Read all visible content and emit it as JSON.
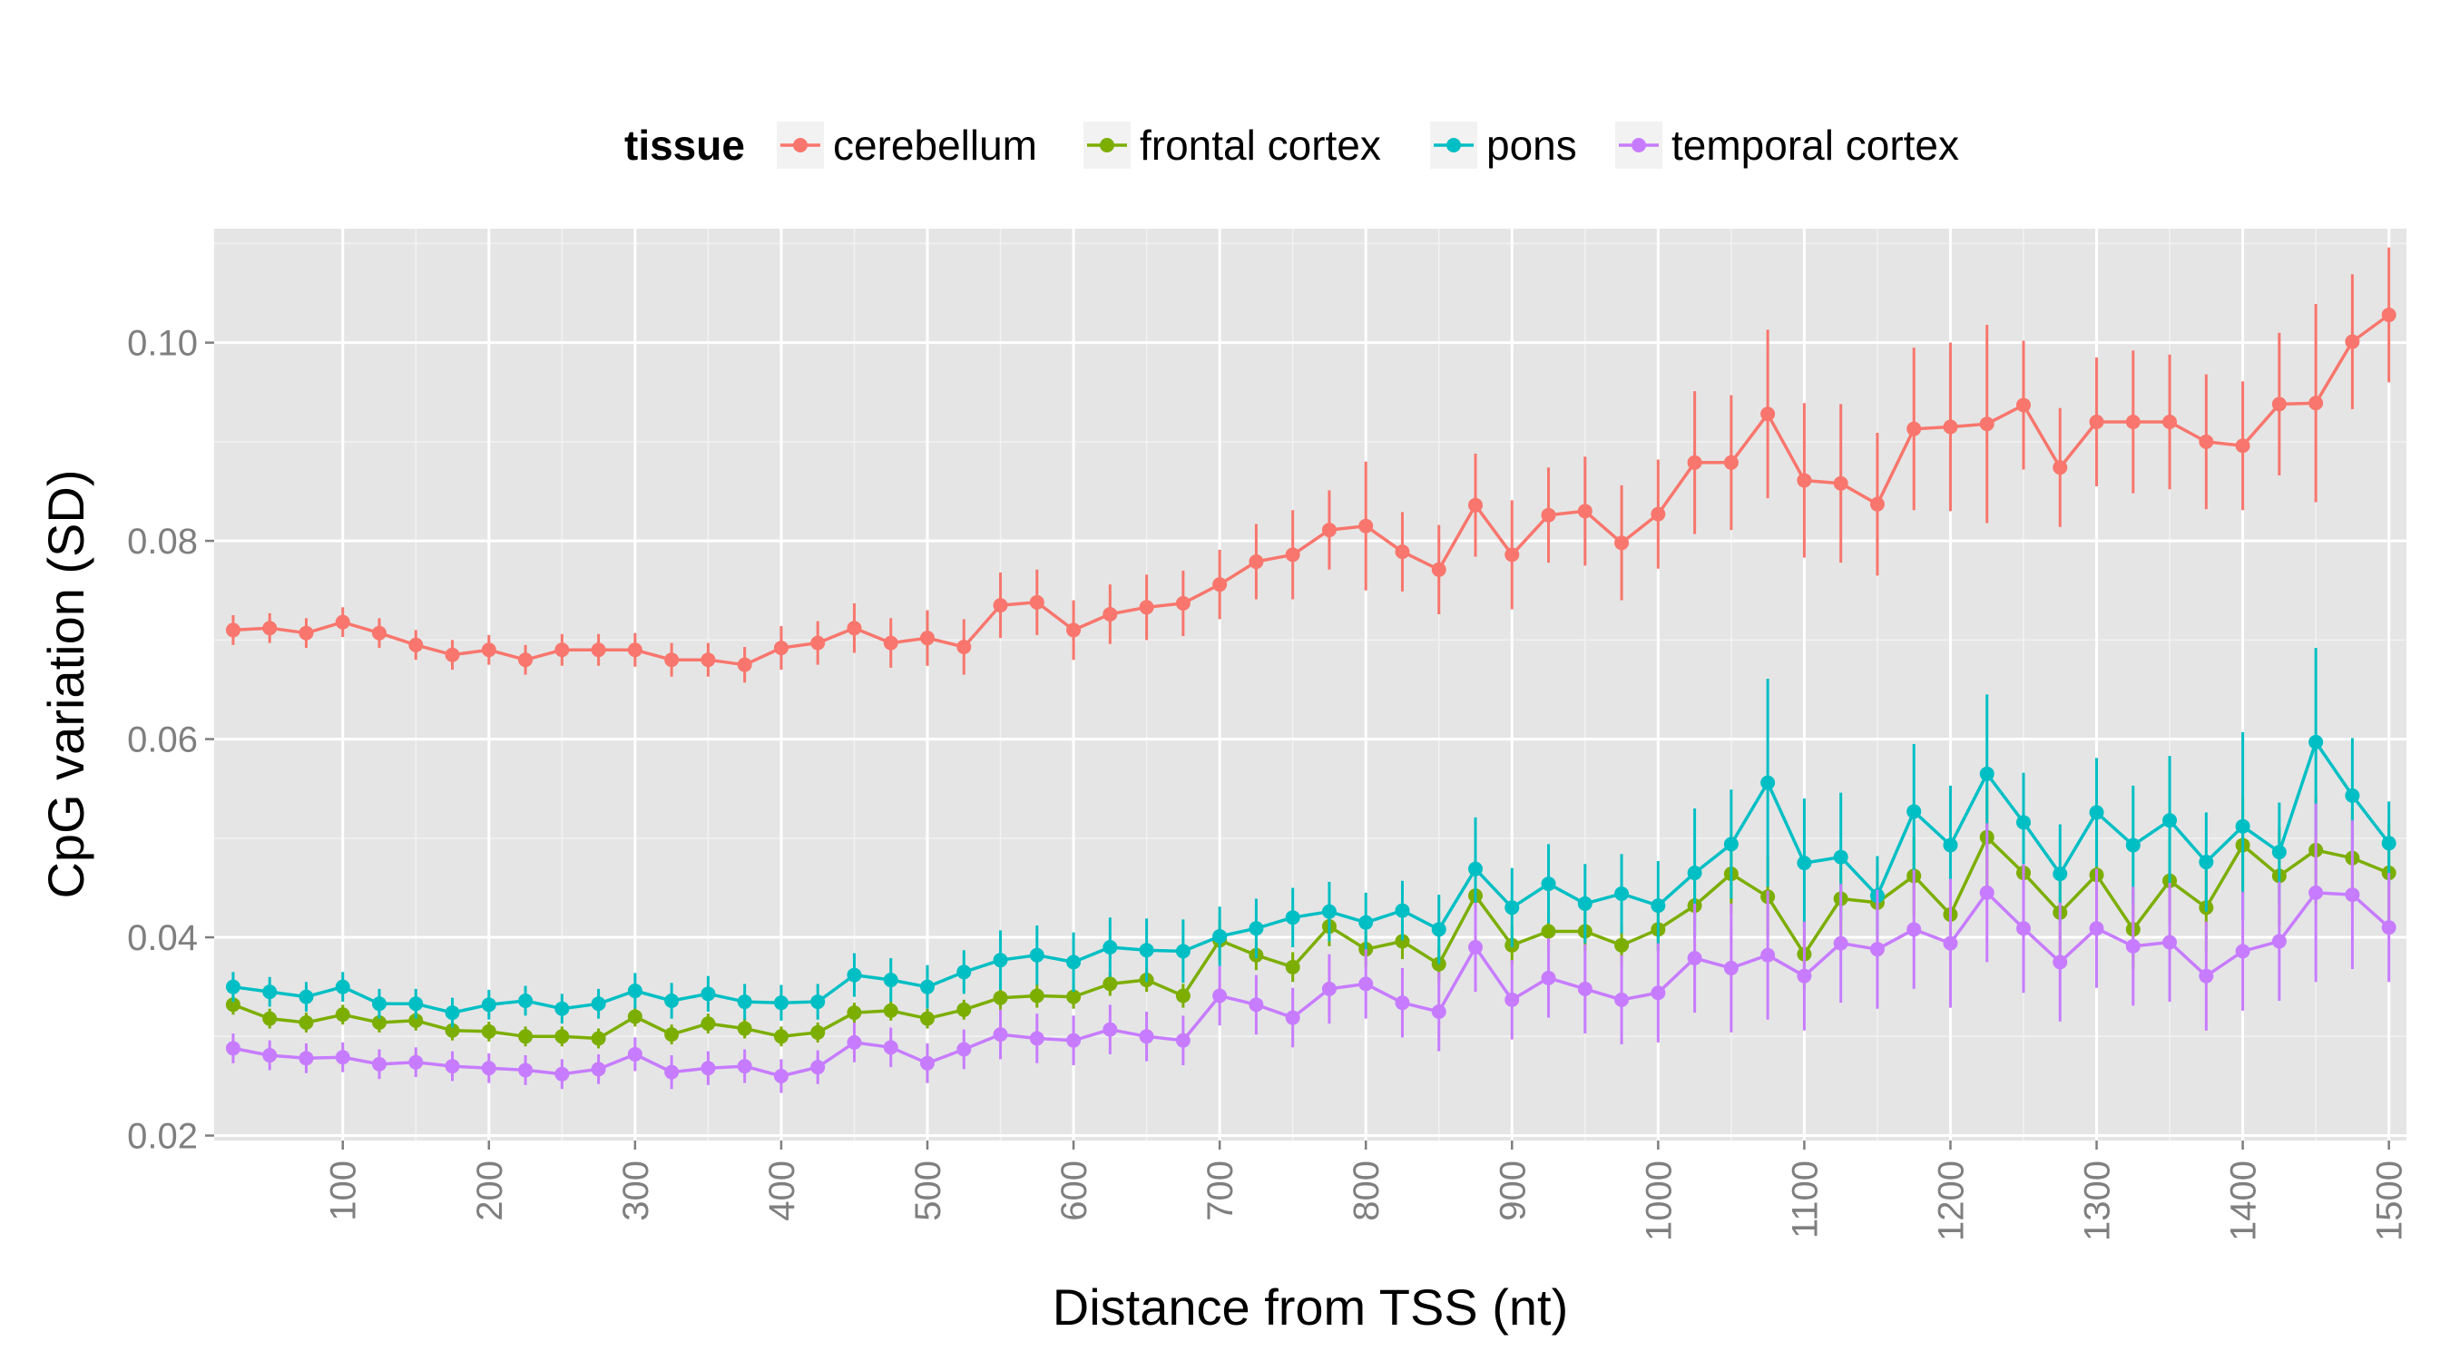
{
  "chart_data": {
    "type": "line",
    "title": "",
    "xlabel": "Distance from TSS (nt)",
    "ylabel": "CpG variation (SD)",
    "xlim": [
      12,
      1512
    ],
    "ylim": [
      0.0195,
      0.1115
    ],
    "x_ticks": [
      100,
      200,
      300,
      400,
      500,
      600,
      700,
      800,
      900,
      1000,
      1100,
      1200,
      1300,
      1400,
      1500
    ],
    "y_ticks": [
      0.02,
      0.04,
      0.06,
      0.08,
      0.1
    ],
    "x_tick_labels": [
      "100",
      "200",
      "300",
      "400",
      "500",
      "600",
      "700",
      "800",
      "900",
      "1000",
      "1100",
      "1200",
      "1300",
      "1400",
      "1500"
    ],
    "y_tick_labels": [
      "0.02",
      "0.04",
      "0.06",
      "0.08",
      "0.10"
    ],
    "grid": true,
    "background": "#e5e5e5",
    "legend": {
      "title": "tissue",
      "position": "top"
    },
    "x": [
      25,
      50,
      75,
      100,
      125,
      150,
      175,
      200,
      225,
      250,
      275,
      300,
      325,
      350,
      375,
      400,
      425,
      450,
      475,
      500,
      525,
      550,
      575,
      600,
      625,
      650,
      675,
      700,
      725,
      750,
      775,
      800,
      825,
      850,
      875,
      900,
      925,
      950,
      975,
      1000,
      1025,
      1050,
      1075,
      1100,
      1125,
      1150,
      1175,
      1200,
      1225,
      1250,
      1275,
      1300,
      1325,
      1350,
      1375,
      1400,
      1425,
      1450,
      1475,
      1500
    ],
    "series": [
      {
        "name": "cerebellum",
        "color": "#F8766D",
        "values": [
          0.071,
          0.0712,
          0.0707,
          0.0718,
          0.0707,
          0.0695,
          0.0685,
          0.069,
          0.068,
          0.069,
          0.069,
          0.069,
          0.068,
          0.068,
          0.0675,
          0.0692,
          0.0697,
          0.0712,
          0.0697,
          0.0702,
          0.0693,
          0.0735,
          0.0738,
          0.071,
          0.0726,
          0.0733,
          0.0737,
          0.0756,
          0.0779,
          0.0786,
          0.0811,
          0.0815,
          0.0789,
          0.0771,
          0.0836,
          0.0786,
          0.0826,
          0.083,
          0.0798,
          0.0827,
          0.0879,
          0.0879,
          0.0928,
          0.0861,
          0.0858,
          0.0837,
          0.0913,
          0.0915,
          0.0918,
          0.0937,
          0.0874,
          0.092,
          0.092,
          0.092,
          0.09,
          0.0896,
          0.0938,
          0.0939,
          0.1001,
          0.1028
        ],
        "err": [
          0.0015,
          0.0015,
          0.0015,
          0.0015,
          0.0015,
          0.0015,
          0.0015,
          0.0015,
          0.0015,
          0.0016,
          0.0016,
          0.0017,
          0.0017,
          0.0017,
          0.0018,
          0.0022,
          0.0022,
          0.0025,
          0.0025,
          0.0028,
          0.0028,
          0.0033,
          0.0033,
          0.003,
          0.003,
          0.0033,
          0.0033,
          0.0035,
          0.0038,
          0.0045,
          0.004,
          0.0065,
          0.004,
          0.0045,
          0.0052,
          0.0055,
          0.0048,
          0.0055,
          0.0058,
          0.0055,
          0.0072,
          0.0068,
          0.0085,
          0.0078,
          0.008,
          0.0072,
          0.0082,
          0.0085,
          0.01,
          0.0065,
          0.006,
          0.0065,
          0.0072,
          0.0068,
          0.0068,
          0.0065,
          0.0072,
          0.01,
          0.0068,
          0.0068
        ]
      },
      {
        "name": "frontal cortex",
        "color": "#7CAE00",
        "values": [
          0.0332,
          0.0318,
          0.0314,
          0.0322,
          0.0314,
          0.0316,
          0.0306,
          0.0305,
          0.03,
          0.03,
          0.0298,
          0.032,
          0.0302,
          0.0313,
          0.0308,
          0.03,
          0.0304,
          0.0324,
          0.0326,
          0.0318,
          0.0327,
          0.0339,
          0.0341,
          0.034,
          0.0353,
          0.0357,
          0.0341,
          0.0397,
          0.0382,
          0.037,
          0.0411,
          0.0388,
          0.0396,
          0.0373,
          0.0442,
          0.0392,
          0.0406,
          0.0406,
          0.0392,
          0.0408,
          0.0432,
          0.0464,
          0.0441,
          0.0383,
          0.0439,
          0.0435,
          0.0462,
          0.0423,
          0.0501,
          0.0465,
          0.0425,
          0.0463,
          0.0408,
          0.0457,
          0.043,
          0.0493,
          0.0462,
          0.0488,
          0.048,
          0.0465
        ],
        "err": [
          0.001,
          0.001,
          0.001,
          0.001,
          0.001,
          0.001,
          0.001,
          0.001,
          0.001,
          0.001,
          0.001,
          0.001,
          0.001,
          0.001,
          0.001,
          0.001,
          0.001,
          0.001,
          0.001,
          0.001,
          0.001,
          0.0012,
          0.0012,
          0.0012,
          0.0012,
          0.0012,
          0.0012,
          0.002,
          0.0015,
          0.0015,
          0.002,
          0.0018,
          0.0018,
          0.0018,
          0.0025,
          0.002,
          0.002,
          0.002,
          0.002,
          0.0022,
          0.003,
          0.004,
          0.004,
          0.0035,
          0.0035,
          0.0035,
          0.004,
          0.004,
          0.005,
          0.0045,
          0.004,
          0.0045,
          0.004,
          0.0045,
          0.0045,
          0.005,
          0.005,
          0.0055,
          0.005,
          0.005
        ]
      },
      {
        "name": "pons",
        "color": "#00BFC4",
        "values": [
          0.035,
          0.0345,
          0.034,
          0.035,
          0.0333,
          0.0333,
          0.0324,
          0.0332,
          0.0336,
          0.0328,
          0.0333,
          0.0346,
          0.0336,
          0.0343,
          0.0335,
          0.0334,
          0.0335,
          0.0362,
          0.0357,
          0.035,
          0.0365,
          0.0377,
          0.0382,
          0.0375,
          0.039,
          0.0387,
          0.0386,
          0.0401,
          0.0409,
          0.042,
          0.0426,
          0.0415,
          0.0427,
          0.0408,
          0.0469,
          0.043,
          0.0454,
          0.0434,
          0.0444,
          0.0432,
          0.0465,
          0.0494,
          0.0556,
          0.0475,
          0.0481,
          0.0442,
          0.0527,
          0.0493,
          0.0565,
          0.0516,
          0.0464,
          0.0526,
          0.0493,
          0.0518,
          0.0476,
          0.0512,
          0.0486,
          0.0597,
          0.0543,
          0.0495
        ],
        "err": [
          0.0015,
          0.0015,
          0.0015,
          0.0015,
          0.0015,
          0.0015,
          0.0015,
          0.0015,
          0.0015,
          0.0015,
          0.0015,
          0.0018,
          0.0018,
          0.0018,
          0.0018,
          0.0018,
          0.0018,
          0.0022,
          0.0022,
          0.0022,
          0.0022,
          0.003,
          0.003,
          0.003,
          0.003,
          0.0032,
          0.0032,
          0.003,
          0.003,
          0.003,
          0.003,
          0.003,
          0.003,
          0.0035,
          0.0052,
          0.004,
          0.004,
          0.004,
          0.004,
          0.0045,
          0.0065,
          0.0055,
          0.0105,
          0.0065,
          0.0065,
          0.004,
          0.0068,
          0.006,
          0.008,
          0.005,
          0.005,
          0.0055,
          0.006,
          0.0065,
          0.005,
          0.0095,
          0.005,
          0.0095,
          0.0058,
          0.0042
        ]
      },
      {
        "name": "temporal cortex",
        "color": "#C77CFF",
        "values": [
          0.0288,
          0.0281,
          0.0278,
          0.0279,
          0.0272,
          0.0274,
          0.027,
          0.0268,
          0.0266,
          0.0262,
          0.0267,
          0.0282,
          0.0264,
          0.0268,
          0.027,
          0.026,
          0.0269,
          0.0294,
          0.0289,
          0.0273,
          0.0287,
          0.0302,
          0.0298,
          0.0296,
          0.0307,
          0.03,
          0.0296,
          0.0341,
          0.0332,
          0.0319,
          0.0348,
          0.0353,
          0.0334,
          0.0325,
          0.039,
          0.0337,
          0.0359,
          0.0348,
          0.0337,
          0.0344,
          0.0379,
          0.0369,
          0.0382,
          0.0361,
          0.0394,
          0.0388,
          0.0408,
          0.0394,
          0.0445,
          0.0409,
          0.0375,
          0.0409,
          0.0391,
          0.0395,
          0.0361,
          0.0386,
          0.0396,
          0.0445,
          0.0443,
          0.041
        ],
        "err": [
          0.0015,
          0.0015,
          0.0015,
          0.0015,
          0.0015,
          0.0015,
          0.0015,
          0.0015,
          0.0015,
          0.0015,
          0.0015,
          0.0017,
          0.0017,
          0.0017,
          0.0017,
          0.0017,
          0.0017,
          0.002,
          0.002,
          0.002,
          0.002,
          0.0025,
          0.0025,
          0.0025,
          0.0025,
          0.0025,
          0.0025,
          0.003,
          0.003,
          0.003,
          0.0035,
          0.0035,
          0.0035,
          0.004,
          0.0045,
          0.004,
          0.004,
          0.0045,
          0.0045,
          0.005,
          0.0055,
          0.0065,
          0.0065,
          0.0055,
          0.006,
          0.006,
          0.006,
          0.0065,
          0.007,
          0.0065,
          0.006,
          0.006,
          0.006,
          0.006,
          0.0055,
          0.006,
          0.006,
          0.009,
          0.0075,
          0.0055
        ]
      }
    ]
  }
}
